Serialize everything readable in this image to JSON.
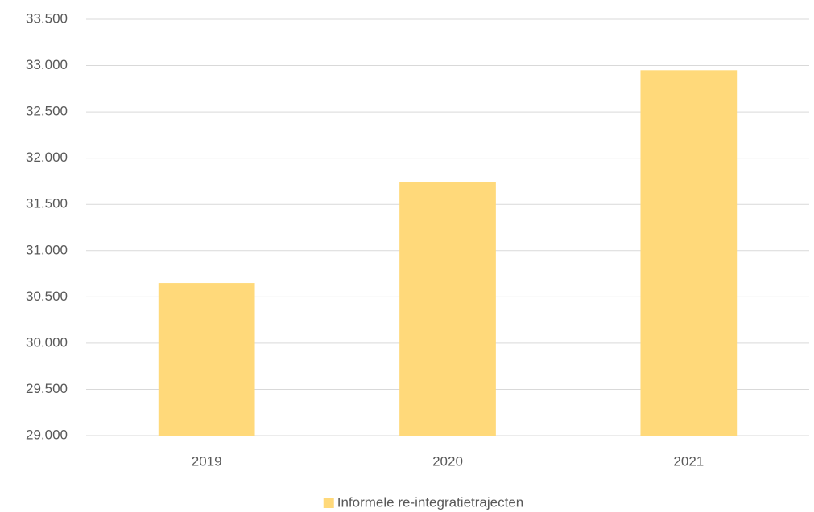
{
  "chart_data": {
    "type": "bar",
    "categories": [
      "2019",
      "2020",
      "2021"
    ],
    "series": [
      {
        "name": "Informele re-integratietrajecten",
        "color": "#ffd97a",
        "values": [
          30650,
          31740,
          32950
        ]
      }
    ],
    "ylim": [
      29000,
      33500
    ],
    "yticks": [
      {
        "value": 29000,
        "label": "29.000"
      },
      {
        "value": 29500,
        "label": "29.500"
      },
      {
        "value": 30000,
        "label": "30.000"
      },
      {
        "value": 30500,
        "label": "30.500"
      },
      {
        "value": 31000,
        "label": "31.000"
      },
      {
        "value": 31500,
        "label": "31.500"
      },
      {
        "value": 32000,
        "label": "32.000"
      },
      {
        "value": 32500,
        "label": "32.500"
      },
      {
        "value": 33000,
        "label": "33.000"
      },
      {
        "value": 33500,
        "label": "33.500"
      }
    ],
    "grid": true,
    "legend": "bottom"
  }
}
